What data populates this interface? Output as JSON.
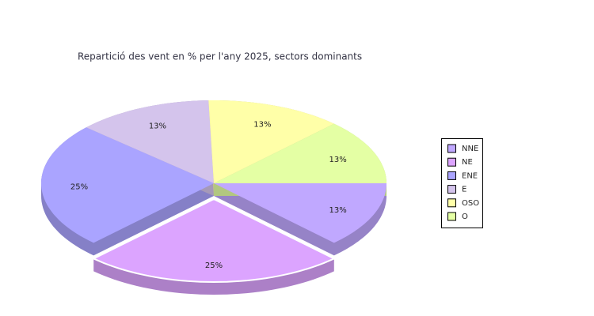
{
  "chart_data": {
    "type": "pie",
    "title": "Repartició des vent en % per l'any 2025, sectors dominants",
    "categories": [
      "NNE",
      "NE",
      "ENE",
      "E",
      "OSO",
      "O"
    ],
    "values": [
      13,
      25,
      25,
      13,
      13,
      13
    ],
    "value_labels": [
      "13%",
      "25%",
      "25%",
      "13%",
      "13%",
      "13%"
    ],
    "colors": [
      "#c0a8ff",
      "#dca4ff",
      "#aaa4ff",
      "#d4c4ec",
      "#ffffa8",
      "#e4ffa4"
    ],
    "explode": [
      false,
      true,
      false,
      false,
      false,
      false
    ],
    "legend": "right"
  }
}
